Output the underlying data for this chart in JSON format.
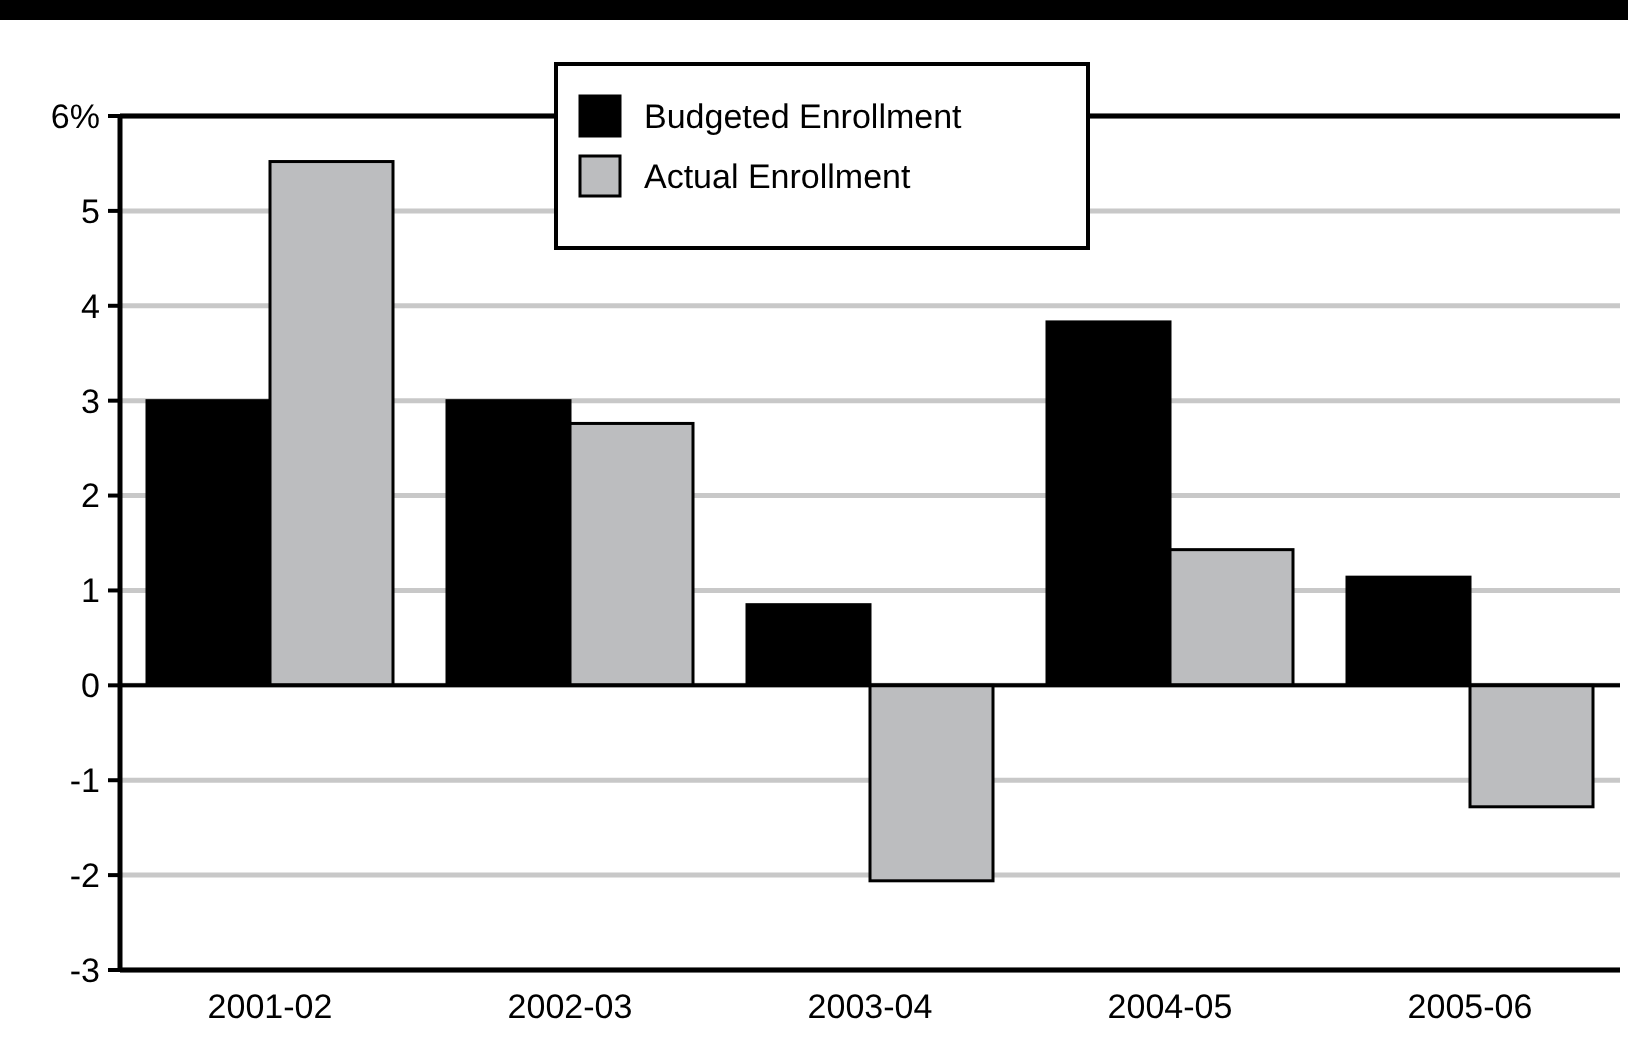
{
  "chart_data": {
    "type": "bar",
    "categories": [
      "2001-02",
      "2002-03",
      "2003-04",
      "2004-05",
      "2005-06"
    ],
    "series": [
      {
        "name": "Budgeted Enrollment",
        "color": "#000000",
        "values": [
          3.0,
          3.0,
          0.85,
          3.83,
          1.14
        ]
      },
      {
        "name": "Actual Enrollment",
        "color": "#bcbdbf",
        "values": [
          5.52,
          2.76,
          -2.06,
          1.43,
          -1.28
        ]
      }
    ],
    "ylim": [
      -3,
      6
    ],
    "yticks": [
      -3,
      -2,
      -1,
      0,
      1,
      2,
      3,
      4,
      5,
      {
        "value": 6,
        "label": "6%"
      }
    ],
    "grid": "y",
    "legend": "top"
  }
}
